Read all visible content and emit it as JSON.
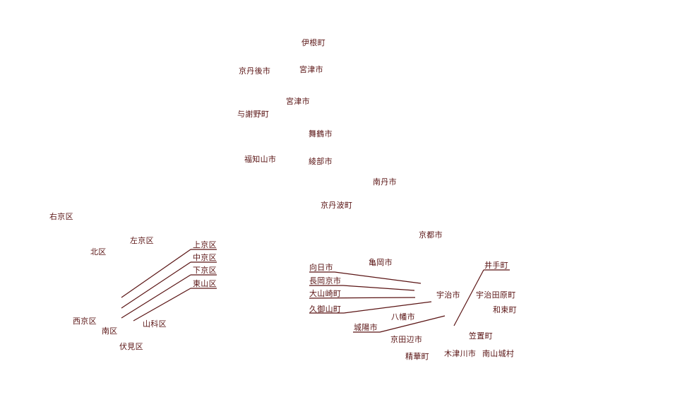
{
  "map": {
    "north": {
      "ine": "伊根町",
      "kyotango": "京丹後市",
      "miyazu_top": "宮津市",
      "miyazu": "宮津市",
      "yosano": "与謝野町",
      "maizuru": "舞鶴市",
      "fukuchiyama": "福知山市",
      "ayabe": "綾部市",
      "nantan": "南丹市",
      "kyotamba": "京丹波町",
      "kyoto_city": "京都市"
    },
    "kyoto_wards": {
      "ukyo": "右京区",
      "sakyo": "左京区",
      "kita": "北区",
      "kamigyo": "上京区",
      "nakagyo": "中京区",
      "shimogyo": "下京区",
      "higashiyama": "東山区",
      "nishikyo": "西京区",
      "minami": "南区",
      "yamashina": "山科区",
      "fushimi": "伏見区"
    },
    "south": {
      "muko": "向日市",
      "kameoka": "亀岡市",
      "nagaokakyo": "長岡京市",
      "oyamazaki": "大山崎町",
      "kumiyama": "久御山町",
      "uji": "宇治市",
      "yawata": "八幡市",
      "joyo": "城陽市",
      "kyotanabe": "京田辺市",
      "seika": "精華町",
      "ide": "井手町",
      "ujitawara": "宇治田原町",
      "wazuka": "和束町",
      "kasagi": "笠置町",
      "kizugawa": "木津川市",
      "minamiyamashiro": "南山城村"
    },
    "colors": {
      "label": "#5a1414",
      "leader": "#5a1414",
      "background": "#ffffff"
    }
  }
}
